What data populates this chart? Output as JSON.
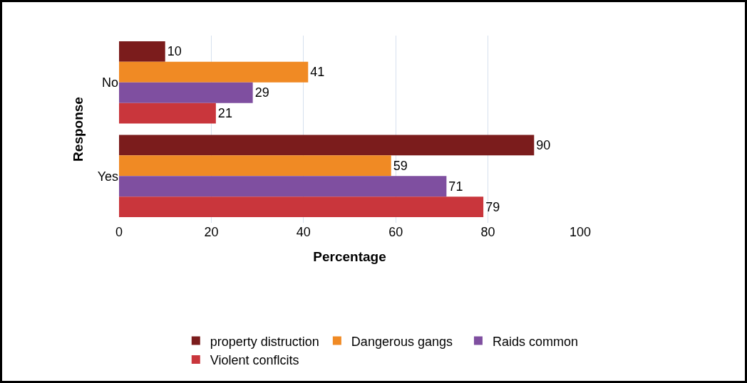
{
  "chart_data": {
    "type": "bar",
    "orientation": "horizontal",
    "xlabel": "Percentage",
    "ylabel": "Response",
    "categories": [
      "No",
      "Yes"
    ],
    "series": [
      {
        "name": "property distruction",
        "color": "#7b1c1c",
        "values": [
          10,
          90
        ]
      },
      {
        "name": "Dangerous gangs",
        "color": "#f08a24",
        "values": [
          41,
          59
        ]
      },
      {
        "name": "Raids common",
        "color": "#7f4fa0",
        "values": [
          29,
          71
        ]
      },
      {
        "name": "Violent conflcits",
        "color": "#c9363c",
        "values": [
          21,
          79
        ]
      }
    ],
    "xlim": [
      0,
      100
    ],
    "xticks": [
      0,
      20,
      40,
      60,
      80,
      100
    ],
    "grid": "x",
    "legend": "bottom",
    "data_labels": true
  }
}
